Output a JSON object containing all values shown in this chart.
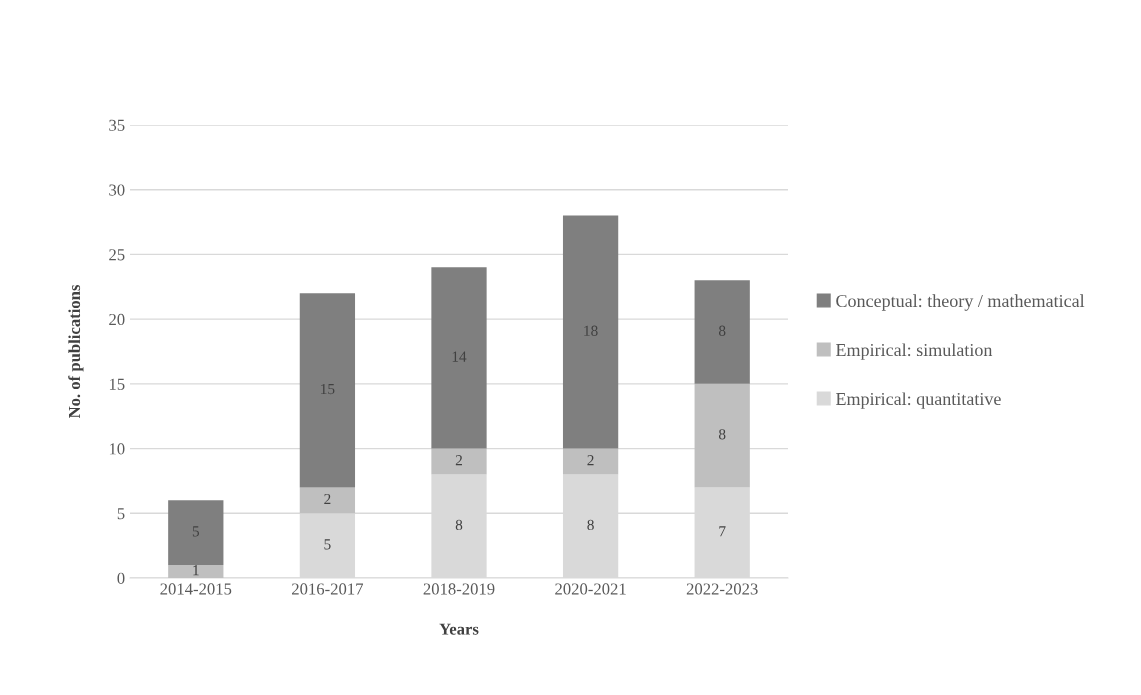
{
  "chart_data": {
    "type": "bar",
    "stacked": true,
    "xlabel": "Years",
    "ylabel": "No. of publications",
    "categories": [
      "2014-2015",
      "2016-2017",
      "2018-2019",
      "2020-2021",
      "2022-2023"
    ],
    "series": [
      {
        "name": "Empirical: quantitative",
        "color": "#d9d9d9",
        "values": [
          0,
          5,
          8,
          8,
          7
        ],
        "value_labels": [
          null,
          "5",
          "8",
          "8",
          "7"
        ]
      },
      {
        "name": "Empirical: simulation",
        "color": "#bfbfbf",
        "values": [
          1,
          2,
          2,
          2,
          8
        ],
        "value_labels": [
          "1",
          "2",
          "2",
          "2",
          "8"
        ]
      },
      {
        "name": "Conceptual: theory / mathematical",
        "color": "#7f7f7f",
        "values": [
          5,
          15,
          14,
          18,
          8
        ],
        "value_labels": [
          "5",
          "15",
          "14",
          "18",
          "8"
        ]
      }
    ],
    "ylim": [
      0,
      35
    ],
    "yticks": [
      0,
      5,
      10,
      15,
      20,
      25,
      30,
      35
    ],
    "grid": "y",
    "legend": "right"
  }
}
